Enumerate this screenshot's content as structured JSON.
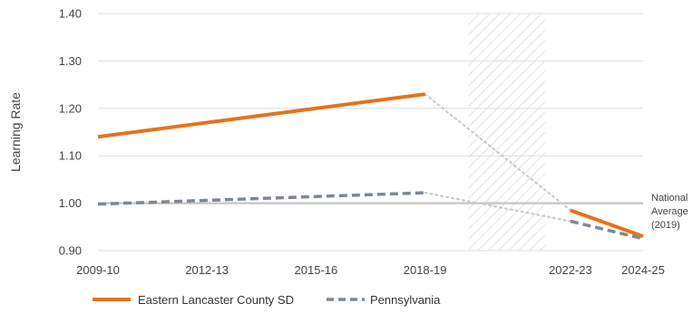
{
  "chart_data": {
    "type": "line",
    "title": "",
    "xlabel": "",
    "ylabel": "Learning Rate",
    "ylim": [
      0.9,
      1.4
    ],
    "y_ticks": [
      "0.90",
      "1.00",
      "1.10",
      "1.20",
      "1.30",
      "1.40"
    ],
    "x_ticks": [
      "2009-10",
      "2012-13",
      "2015-16",
      "2018-19",
      "2022-23",
      "2024-25"
    ],
    "x_range": [
      2009,
      2024
    ],
    "grid": "horizontal",
    "legend_position": "bottom",
    "shaded_period": {
      "start": 2019.2,
      "end": 2021.3
    },
    "reference_line": {
      "value": 1.0,
      "label_lines": [
        "National",
        "Average",
        "(2019)"
      ]
    },
    "series": [
      {
        "name": "Eastern Lancaster County SD",
        "color": "#e8711c",
        "style": "solid",
        "segments": [
          [
            {
              "x": 2009,
              "y": 1.14
            },
            {
              "x": 2018,
              "y": 1.23
            }
          ],
          [
            {
              "x": 2022,
              "y": 0.985
            },
            {
              "x": 2024,
              "y": 0.93
            }
          ]
        ],
        "connector": [
          {
            "x": 2018,
            "y": 1.23
          },
          {
            "x": 2022,
            "y": 0.985
          }
        ]
      },
      {
        "name": "Pennsylvania",
        "color": "#7d8894",
        "style": "dashed",
        "segments": [
          [
            {
              "x": 2009,
              "y": 0.998
            },
            {
              "x": 2018,
              "y": 1.022
            }
          ],
          [
            {
              "x": 2022,
              "y": 0.962
            },
            {
              "x": 2024,
              "y": 0.925
            }
          ]
        ],
        "connector": [
          {
            "x": 2018,
            "y": 1.022
          },
          {
            "x": 2022,
            "y": 0.962
          }
        ]
      }
    ]
  }
}
